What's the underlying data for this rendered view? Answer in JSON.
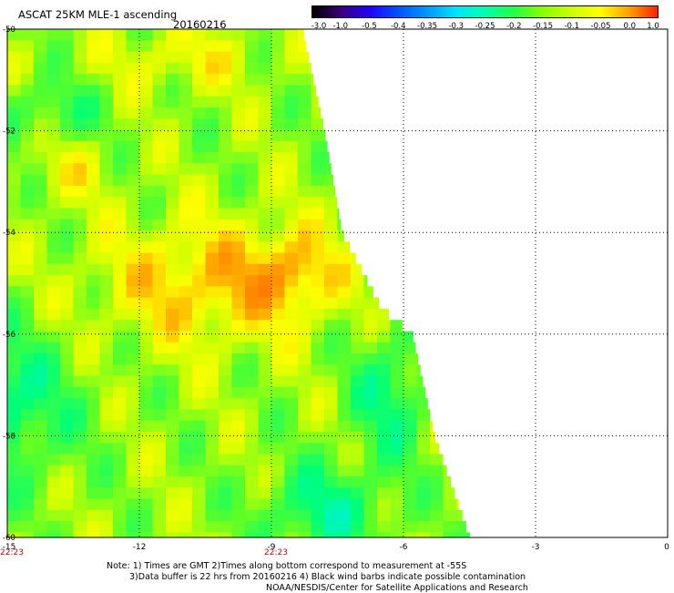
{
  "header": {
    "title": "ASCAT 25KM MLE-1 ascending",
    "date": "20160216"
  },
  "colorbar": {
    "labels": [
      "-3.0",
      "-1.0",
      "-0.5",
      "-0.4",
      "-0.35",
      "-0.3",
      "-0.25",
      "-0.2",
      "-0.15",
      "-0.1",
      "-0.05",
      "0.0",
      "1.0"
    ],
    "colors": [
      "#000000",
      "#3a007a",
      "#2200ff",
      "#0055ff",
      "#0099ff",
      "#00e5ff",
      "#00ffb0",
      "#22ff44",
      "#88ff00",
      "#ccff00",
      "#ffff00",
      "#ffa000",
      "#ff2000"
    ]
  },
  "chart_data": {
    "type": "heatmap",
    "title": "ASCAT 25KM MLE-1 ascending",
    "xlim": [
      -15,
      0
    ],
    "ylim": [
      -60,
      -50
    ],
    "x_ticks": [
      "-15",
      "-12",
      "-9",
      "-6",
      "-3",
      "0"
    ],
    "y_ticks": [
      "-50",
      "-52",
      "-54",
      "-56",
      "-58",
      "-60"
    ],
    "time_labels": [
      {
        "x": -15,
        "label": "22:23"
      },
      {
        "x": -9,
        "label": "22:23"
      }
    ],
    "swath_edge": [
      {
        "lat": -50,
        "lon": -8.3
      },
      {
        "lat": -52,
        "lon": -7.8
      },
      {
        "lat": -54,
        "lon": -7.4
      },
      {
        "lat": -55.5,
        "lon": -6.5
      },
      {
        "lat": -56,
        "lon": -5.8
      },
      {
        "lat": -58,
        "lon": -5.3
      },
      {
        "lat": -60,
        "lon": -4.5
      }
    ],
    "grid": "dotted"
  },
  "notes": {
    "line1": "Note: 1) Times are GMT 2)Times along bottom correspond to measurement at -55S",
    "line2": "3)Data buffer is 22 hrs from 20160216 4) Black wind barbs indicate possible contamination",
    "line3": "NOAA/NESDIS/Center for Satellite Applications and Research"
  }
}
